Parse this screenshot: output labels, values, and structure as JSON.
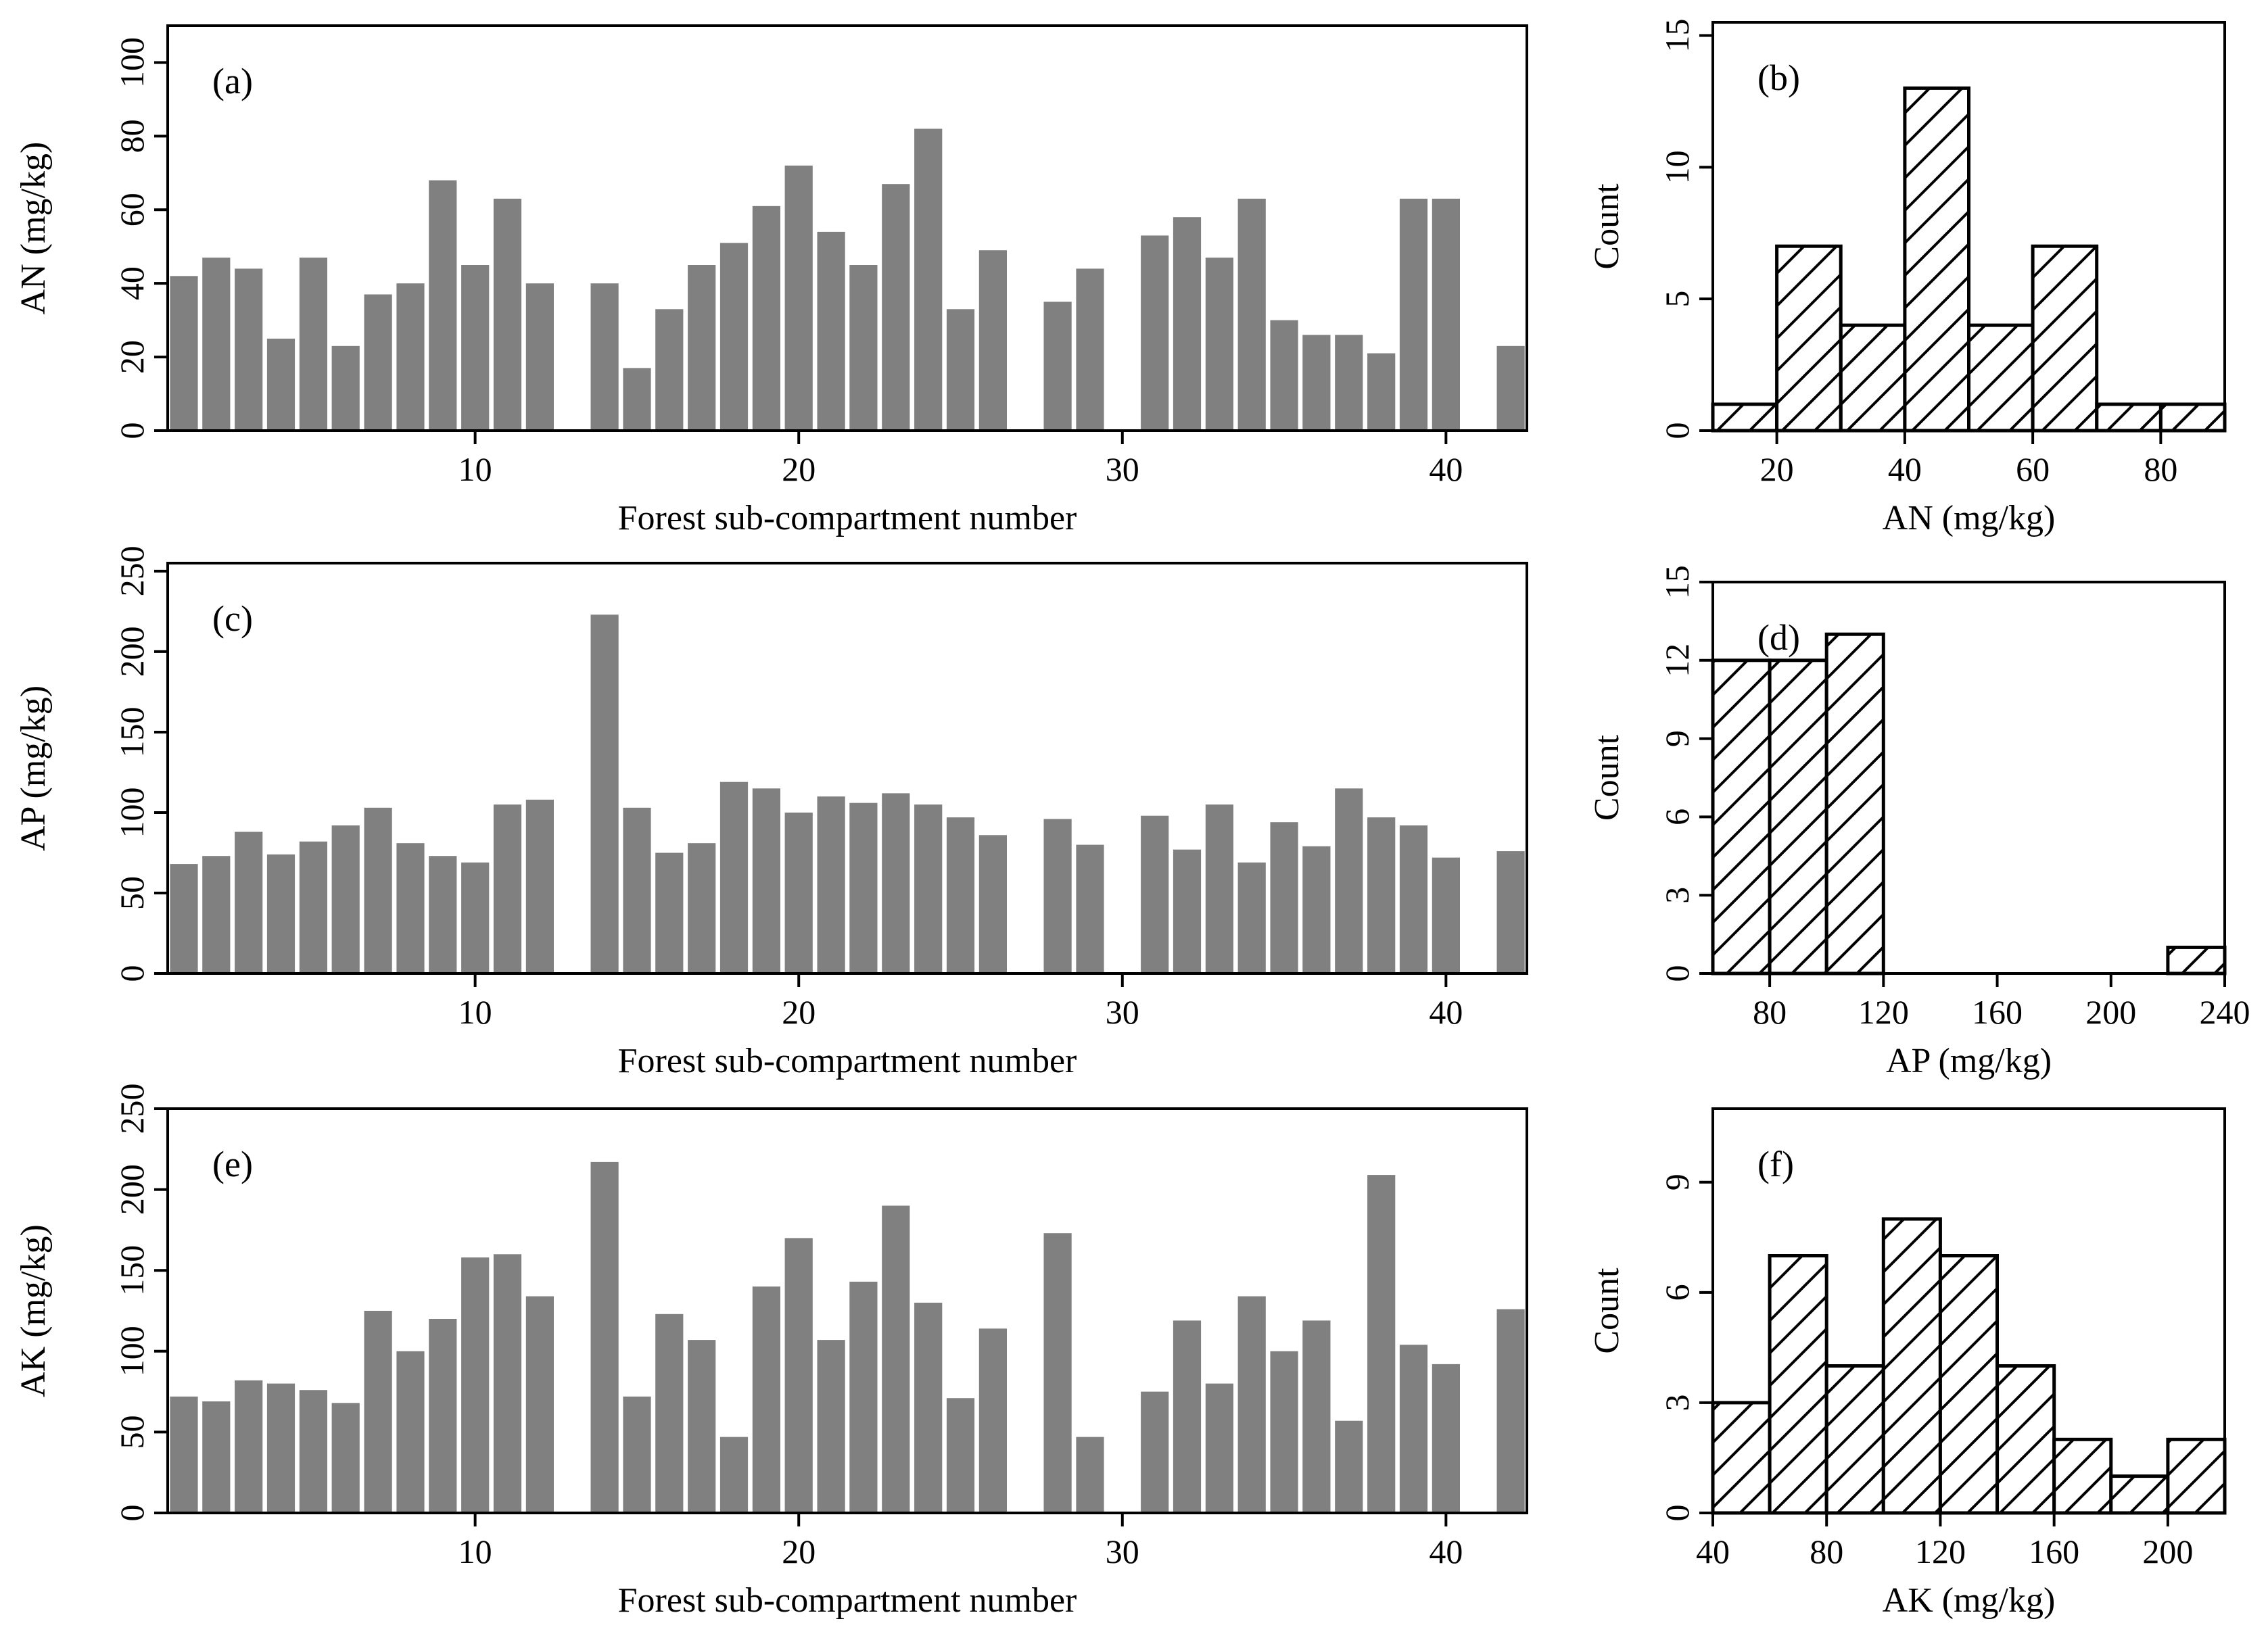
{
  "chart_data": [
    {
      "id": "a",
      "type": "bar",
      "panel_label": "(a)",
      "xlabel": "Forest sub-compartment number",
      "ylabel": "AN (mg/kg)",
      "xlim": [
        0.5,
        42.5
      ],
      "ylim": [
        0,
        110
      ],
      "yticks": [
        0,
        20,
        40,
        60,
        80,
        100
      ],
      "xticks": [
        10,
        20,
        30,
        40
      ],
      "bar_color": "#808080",
      "x": [
        1,
        2,
        3,
        4,
        5,
        6,
        7,
        8,
        9,
        10,
        11,
        12,
        13,
        14,
        15,
        16,
        17,
        18,
        19,
        20,
        21,
        22,
        23,
        24,
        25,
        26,
        27,
        28,
        29,
        30,
        31,
        32,
        33,
        34,
        35,
        36,
        37,
        38,
        39,
        40,
        41,
        42
      ],
      "values": [
        42,
        47,
        44,
        25,
        47,
        23,
        37,
        40,
        68,
        45,
        63,
        40,
        0,
        40,
        17,
        33,
        45,
        51,
        61,
        72,
        54,
        45,
        67,
        82,
        33,
        49,
        0,
        35,
        44,
        0,
        53,
        58,
        47,
        63,
        30,
        26,
        26,
        21,
        63,
        63,
        0,
        23
      ]
    },
    {
      "id": "b",
      "type": "histogram",
      "panel_label": "(b)",
      "xlabel": "AN (mg/kg)",
      "ylabel": "Count",
      "xlim": [
        10,
        90
      ],
      "ylim": [
        0,
        15.5
      ],
      "yticks": [
        0,
        5,
        10,
        15
      ],
      "xticks": [
        20,
        40,
        60,
        80
      ],
      "bins": [
        [
          10,
          20
        ],
        [
          20,
          30
        ],
        [
          30,
          40
        ],
        [
          40,
          50
        ],
        [
          50,
          60
        ],
        [
          60,
          70
        ],
        [
          70,
          80
        ],
        [
          80,
          90
        ]
      ],
      "counts": [
        1,
        7,
        4,
        13,
        4,
        7,
        1,
        1
      ]
    },
    {
      "id": "c",
      "type": "bar",
      "panel_label": "(c)",
      "xlabel": "Forest sub-compartment number",
      "ylabel": "AP (mg/kg)",
      "xlim": [
        0.5,
        42.5
      ],
      "ylim": [
        0,
        255
      ],
      "yticks": [
        0,
        50,
        100,
        150,
        200,
        250
      ],
      "xticks": [
        10,
        20,
        30,
        40
      ],
      "bar_color": "#808080",
      "x": [
        1,
        2,
        3,
        4,
        5,
        6,
        7,
        8,
        9,
        10,
        11,
        12,
        13,
        14,
        15,
        16,
        17,
        18,
        19,
        20,
        21,
        22,
        23,
        24,
        25,
        26,
        27,
        28,
        29,
        30,
        31,
        32,
        33,
        34,
        35,
        36,
        37,
        38,
        39,
        40,
        41,
        42
      ],
      "values": [
        68,
        73,
        88,
        74,
        82,
        92,
        103,
        81,
        73,
        69,
        105,
        108,
        0,
        223,
        103,
        75,
        81,
        119,
        115,
        100,
        110,
        106,
        112,
        105,
        97,
        86,
        0,
        96,
        80,
        0,
        98,
        77,
        105,
        69,
        94,
        79,
        115,
        97,
        92,
        72,
        0,
        76
      ]
    },
    {
      "id": "d",
      "type": "histogram",
      "panel_label": "(d)",
      "xlabel": "AP (mg/kg)",
      "ylabel": "Count",
      "xlim": [
        60,
        240
      ],
      "ylim": [
        0,
        15
      ],
      "yticks": [
        0,
        3,
        6,
        9,
        12,
        15
      ],
      "xticks": [
        80,
        120,
        160,
        200,
        240
      ],
      "bins": [
        [
          60,
          80
        ],
        [
          80,
          100
        ],
        [
          100,
          120
        ],
        [
          120,
          140
        ],
        [
          140,
          160
        ],
        [
          160,
          180
        ],
        [
          180,
          200
        ],
        [
          200,
          220
        ],
        [
          220,
          240
        ]
      ],
      "counts": [
        12,
        12,
        13,
        0,
        0,
        0,
        0,
        0,
        1
      ]
    },
    {
      "id": "e",
      "type": "bar",
      "panel_label": "(e)",
      "xlabel": "Forest sub-compartment number",
      "ylabel": "AK (mg/kg)",
      "xlim": [
        0.5,
        42.5
      ],
      "ylim": [
        0,
        250
      ],
      "yticks": [
        0,
        50,
        100,
        150,
        200,
        250
      ],
      "xticks": [
        10,
        20,
        30,
        40
      ],
      "bar_color": "#808080",
      "x": [
        1,
        2,
        3,
        4,
        5,
        6,
        7,
        8,
        9,
        10,
        11,
        12,
        13,
        14,
        15,
        16,
        17,
        18,
        19,
        20,
        21,
        22,
        23,
        24,
        25,
        26,
        27,
        28,
        29,
        30,
        31,
        32,
        33,
        34,
        35,
        36,
        37,
        38,
        39,
        40,
        41,
        42
      ],
      "values": [
        72,
        69,
        82,
        80,
        76,
        68,
        125,
        100,
        120,
        158,
        160,
        134,
        0,
        217,
        72,
        123,
        107,
        47,
        140,
        170,
        107,
        143,
        190,
        130,
        71,
        114,
        0,
        173,
        47,
        0,
        75,
        119,
        80,
        134,
        100,
        119,
        57,
        209,
        104,
        92,
        0,
        126
      ]
    },
    {
      "id": "f",
      "type": "histogram",
      "panel_label": "(f)",
      "xlabel": "AK (mg/kg)",
      "ylabel": "Count",
      "xlim": [
        40,
        220
      ],
      "ylim": [
        0,
        11
      ],
      "yticks": [
        0,
        3,
        6,
        9
      ],
      "xticks": [
        40,
        80,
        120,
        160,
        200
      ],
      "bins": [
        [
          40,
          60
        ],
        [
          60,
          80
        ],
        [
          80,
          100
        ],
        [
          100,
          120
        ],
        [
          120,
          140
        ],
        [
          140,
          160
        ],
        [
          160,
          180
        ],
        [
          180,
          200
        ],
        [
          200,
          220
        ]
      ],
      "counts": [
        3,
        7,
        4,
        8,
        7,
        4,
        2,
        1,
        2
      ]
    }
  ]
}
